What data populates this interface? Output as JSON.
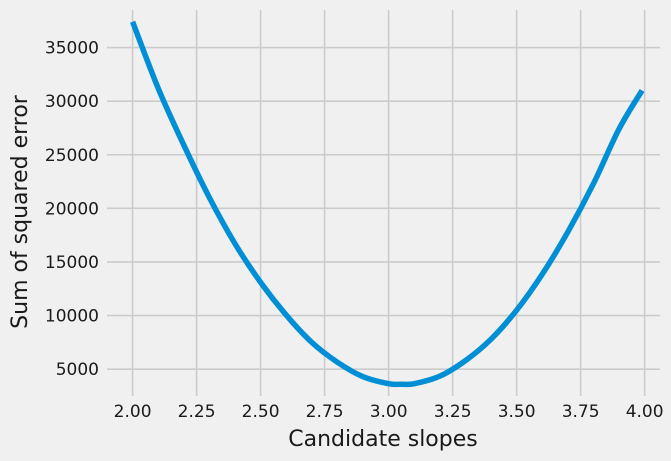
{
  "chart_data": {
    "type": "line",
    "title": "",
    "xlabel": "Candidate slopes",
    "ylabel": "Sum of squared error",
    "xlim": [
      1.9,
      4.06
    ],
    "ylim": [
      2500,
      38500
    ],
    "grid": true,
    "xticks": [
      2.0,
      2.25,
      2.5,
      2.75,
      3.0,
      3.25,
      3.5,
      3.75,
      4.0
    ],
    "xtick_labels": [
      "2.00",
      "2.25",
      "2.50",
      "2.75",
      "3.00",
      "3.25",
      "3.50",
      "3.75",
      "4.00"
    ],
    "yticks": [
      5000,
      10000,
      15000,
      20000,
      25000,
      30000,
      35000
    ],
    "ytick_labels": [
      "5000",
      "10000",
      "15000",
      "20000",
      "25000",
      "30000",
      "35000"
    ],
    "series": [
      {
        "color": "#008fd5",
        "x": [
          2.0,
          2.1,
          2.2,
          2.3,
          2.4,
          2.5,
          2.6,
          2.7,
          2.8,
          2.9,
          3.0,
          3.05,
          3.1,
          3.2,
          3.3,
          3.4,
          3.5,
          3.6,
          3.7,
          3.8,
          3.9,
          3.99
        ],
        "y": [
          37400,
          31200,
          25900,
          21000,
          16700,
          13100,
          10050,
          7500,
          5650,
          4300,
          3650,
          3600,
          3650,
          4350,
          5800,
          7800,
          10500,
          13850,
          17800,
          22300,
          27400,
          31000
        ]
      }
    ]
  }
}
